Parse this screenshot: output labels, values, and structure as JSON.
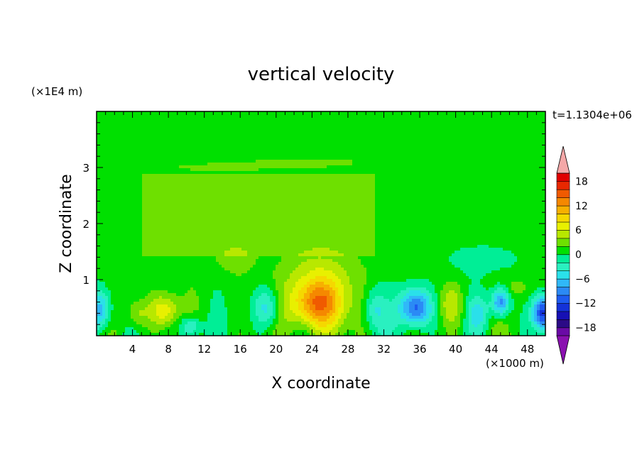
{
  "chart_data": {
    "type": "heatmap",
    "subtype": "filled-contour",
    "title": "vertical velocity",
    "time_label": "t=1.1304e+06",
    "xlabel": "X coordinate",
    "ylabel": "Z coordinate",
    "x_scale_label": "(×1000 m)",
    "y_scale_label": "(×1E4 m)",
    "xlim": [
      0,
      50
    ],
    "ylim": [
      0,
      4
    ],
    "x_ticks": [
      4,
      8,
      12,
      16,
      20,
      24,
      28,
      32,
      36,
      40,
      44,
      48
    ],
    "y_ticks": [
      1,
      2,
      3
    ],
    "colorbar": {
      "min": -20,
      "max": 20,
      "step": 2,
      "tick_labels": [
        18,
        12,
        6,
        0,
        -6,
        -12,
        -18
      ],
      "extend": "both",
      "colors": [
        "#6a0aa6",
        "#2b0a86",
        "#1610b4",
        "#1432d8",
        "#1e5cf0",
        "#2b8af5",
        "#30b8f8",
        "#2ae0ea",
        "#2af0c0",
        "#00ee96",
        "#00e000",
        "#6ee000",
        "#b8e800",
        "#e8f000",
        "#f5d800",
        "#f7b000",
        "#f58800",
        "#f05a00",
        "#e82800",
        "#e00000"
      ],
      "over_color": "#f4a8a8",
      "under_color": "#8a10b0"
    },
    "background_level_value": 0,
    "features": [
      {
        "label": "updraft",
        "x": 24.5,
        "z": 0.55,
        "peak": 13
      },
      {
        "label": "updraft",
        "x": 7.5,
        "z": 0.45,
        "peak": 6
      },
      {
        "label": "updraft",
        "x": 15.5,
        "z": 1.4,
        "peak": 2
      },
      {
        "label": "downdraft",
        "x": 35.5,
        "z": 0.5,
        "peak": -11
      },
      {
        "label": "downdraft",
        "x": 49.5,
        "z": 0.4,
        "peak": -13
      },
      {
        "label": "downdraft",
        "x": 45.0,
        "z": 0.6,
        "peak": -10
      },
      {
        "label": "downdraft",
        "x": 0.5,
        "z": 0.45,
        "peak": -8
      }
    ]
  }
}
